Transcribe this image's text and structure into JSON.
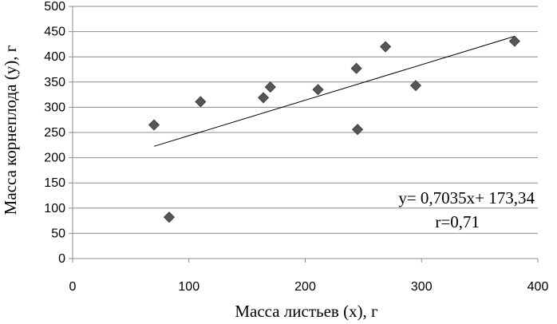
{
  "chart_data": {
    "type": "scatter",
    "xlabel": "Масса листьев (x), г",
    "ylabel": "Масса корнеплода (y), г",
    "xlim": [
      0,
      400
    ],
    "ylim": [
      0,
      500
    ],
    "x_ticks": [
      "0",
      "100",
      "200",
      "300",
      "400"
    ],
    "y_ticks": [
      "0",
      "50",
      "100",
      "150",
      "200",
      "250",
      "300",
      "350",
      "400",
      "450",
      "500"
    ],
    "grid": "horizontal",
    "marker": "diamond",
    "marker_color": "#555555",
    "trend_color": "#000000",
    "points": [
      {
        "x": 70,
        "y": 265
      },
      {
        "x": 83,
        "y": 82
      },
      {
        "x": 110,
        "y": 311
      },
      {
        "x": 164,
        "y": 319
      },
      {
        "x": 170,
        "y": 340
      },
      {
        "x": 211,
        "y": 335
      },
      {
        "x": 244,
        "y": 377
      },
      {
        "x": 245,
        "y": 256
      },
      {
        "x": 269,
        "y": 420
      },
      {
        "x": 295,
        "y": 343
      },
      {
        "x": 380,
        "y": 431
      }
    ],
    "trendline": {
      "slope": 0.7035,
      "intercept": 173.34,
      "x_start": 70,
      "x_end": 380
    },
    "annotations": [
      "y= 0,7035x+ 173,34",
      "r=0,71"
    ]
  }
}
